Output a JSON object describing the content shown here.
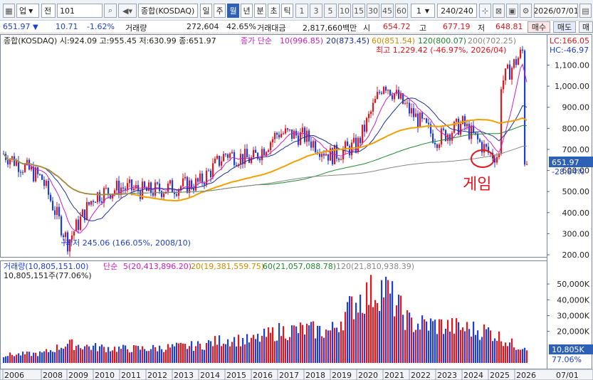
{
  "toolbar": {
    "market": "업",
    "jeon": "전",
    "code": "101",
    "name": "종합(KOSDAQ)",
    "periods": [
      "일",
      "주",
      "월",
      "년",
      "분",
      "초",
      "틱"
    ],
    "active_period": "월",
    "nums": [
      "1",
      "3",
      "5",
      "10",
      "15",
      "30",
      "45",
      "60"
    ],
    "count": "1",
    "range": "240/240",
    "date": "2026/07/01"
  },
  "quote": {
    "price": "651.97",
    "arrow": "▼",
    "change": "10.71",
    "pct": "-1.62%",
    "vol_label": "거래량",
    "vol": "272,604",
    "vol_pct": "42.65%",
    "amt_label": "거래대금",
    "amt": "2,817,660백만",
    "si_label": "시",
    "si": "654.72",
    "go_label": "고",
    "go": "677.19",
    "jeo_label": "저",
    "jeo": "648.81",
    "buy": "매수",
    "sell": "매도",
    "more": "매"
  },
  "price_panel": {
    "header": "종합(KOSDAQ) 시:924.09 고:955.45 저:630.99 종:651.97",
    "ma_label": "종가 단순",
    "ma10": "10(996.85)",
    "ma20": "20(873.45)",
    "ma60": "60(851.54)",
    "ma120": "120(800.07)",
    "ma200": "200(702.25)",
    "high_note": "최고 1,229.42 (-46.97%, 2026/04)",
    "low_note": "최저 245.06 (166.05%, 2008/10)",
    "lc": "LC:166.05",
    "hc": "HC:-46.97",
    "last": "651.97",
    "last_pct": "-28.84%",
    "annotation": "게임"
  },
  "volume_panel": {
    "label": "거래량(10,805,151.00)",
    "ma_label": "단순",
    "ma5": "5(20,413,896.20)",
    "ma20": "20(19,381,559.75)",
    "ma60": "60(21,057,088.78)",
    "ma120": "120(21,810,938.39)",
    "sub": "10,805,151주(77.06%)",
    "last": "10,805K",
    "last_pct": "77.06%"
  },
  "axes": {
    "price_ticks": [
      "1,100.00",
      "1,000.00",
      "900.00",
      "800.00",
      "700.00",
      "600.00",
      "500.00",
      "400.00",
      "300.00",
      "200.00"
    ],
    "vol_ticks": [
      "50,000K",
      "40,000K",
      "30,000K",
      "20,000K"
    ],
    "years": [
      "2006",
      "2008",
      "2009",
      "2010",
      "2011",
      "2012",
      "2013",
      "2014",
      "2015",
      "2016",
      "2017",
      "2018",
      "2019",
      "2020",
      "2021",
      "2022",
      "2023",
      "2024",
      "2025",
      "2026"
    ],
    "date_end": "07/01"
  },
  "colors": {
    "up": "#e8141b",
    "down": "#1c3fd6",
    "ma10": "#d01ec8",
    "ma20": "#1b2f9c",
    "ma60": "#f0a000",
    "ma120": "#1f8a2f",
    "ma200": "#888888",
    "accent": "#2e61b6"
  },
  "chart_data": {
    "type": "candlestick",
    "title": "종합(KOSDAQ)",
    "x": [
      "2006",
      "2008",
      "2009",
      "2010",
      "2011",
      "2012",
      "2013",
      "2014",
      "2015",
      "2016",
      "2017",
      "2018",
      "2019",
      "2020",
      "2021",
      "2022",
      "2023",
      "2024",
      "2025",
      "2026"
    ],
    "close": [
      680,
      560,
      260,
      480,
      520,
      500,
      520,
      540,
      680,
      650,
      780,
      760,
      670,
      720,
      1020,
      880,
      750,
      820,
      680,
      651.97
    ],
    "volume_k": [
      5000,
      6000,
      12000,
      10000,
      9000,
      9000,
      10000,
      11000,
      15000,
      14000,
      20000,
      21000,
      20000,
      40000,
      48000,
      25000,
      24000,
      22000,
      20000,
      10805
    ],
    "ylim_price": [
      200,
      1220
    ],
    "ylim_volume": [
      0,
      55000
    ]
  }
}
